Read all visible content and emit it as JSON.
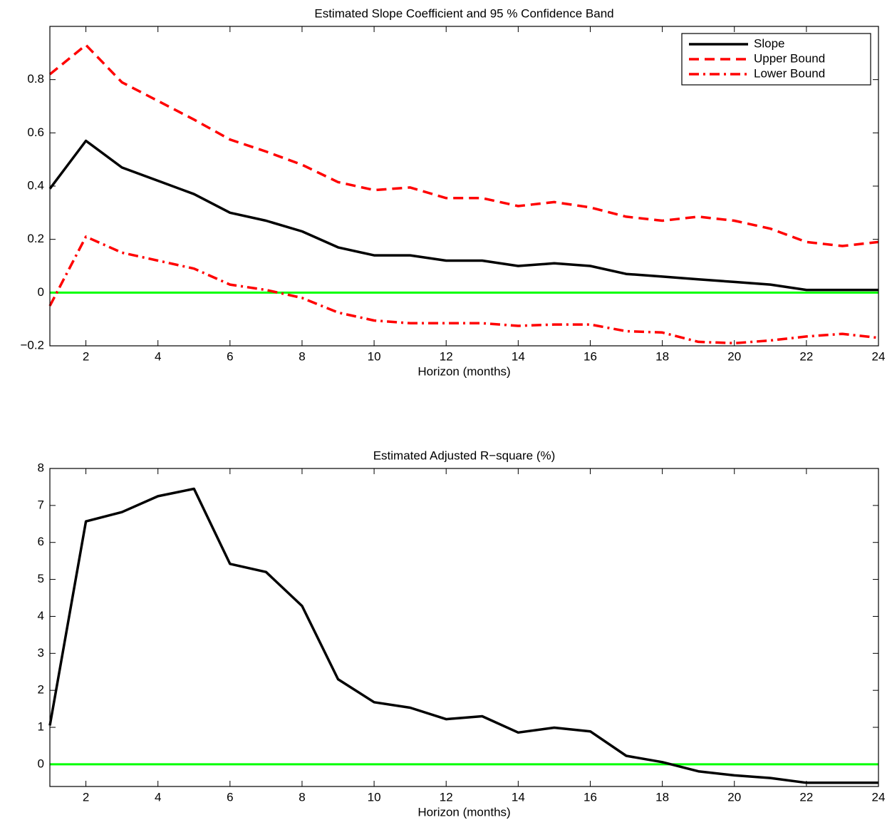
{
  "chart_data": [
    {
      "type": "line",
      "title": "Estimated Slope Coefficient and 95 % Confidence Band",
      "x_label": "Horizon (months)",
      "x": [
        1,
        2,
        3,
        4,
        5,
        6,
        7,
        8,
        9,
        10,
        11,
        12,
        13,
        14,
        15,
        16,
        17,
        18,
        19,
        20,
        21,
        22,
        23,
        24
      ],
      "xlim": [
        1,
        24
      ],
      "xticks": [
        2,
        4,
        6,
        8,
        10,
        12,
        14,
        16,
        18,
        20,
        22,
        24
      ],
      "ylim": [
        -0.2,
        1.0
      ],
      "yticks": [
        {
          "value": -0.2,
          "label": "−0.2"
        },
        0,
        0.2,
        0.4,
        0.6,
        0.8
      ],
      "legend": "upper right",
      "reference_line": {
        "value": 0,
        "color": "#00ff00"
      },
      "series": [
        {
          "name": "Slope",
          "color": "#000000",
          "dash": "solid",
          "values": [
            0.39,
            0.57,
            0.47,
            0.42,
            0.37,
            0.3,
            0.27,
            0.23,
            0.17,
            0.14,
            0.14,
            0.12,
            0.12,
            0.1,
            0.11,
            0.1,
            0.07,
            0.06,
            0.05,
            0.04,
            0.03,
            0.01,
            0.01,
            0.01
          ]
        },
        {
          "name": "Upper Bound",
          "color": "#ff0000",
          "dash": "dashed",
          "values": [
            0.82,
            0.93,
            0.79,
            0.72,
            0.65,
            0.575,
            0.53,
            0.48,
            0.415,
            0.385,
            0.395,
            0.355,
            0.355,
            0.325,
            0.34,
            0.32,
            0.285,
            0.27,
            0.285,
            0.27,
            0.24,
            0.19,
            0.175,
            0.19
          ]
        },
        {
          "name": "Lower Bound",
          "color": "#ff0000",
          "dash": "dashdot",
          "values": [
            -0.05,
            0.21,
            0.15,
            0.12,
            0.09,
            0.03,
            0.01,
            -0.02,
            -0.075,
            -0.105,
            -0.115,
            -0.115,
            -0.115,
            -0.125,
            -0.12,
            -0.12,
            -0.145,
            -0.15,
            -0.185,
            -0.19,
            -0.18,
            -0.165,
            -0.155,
            -0.17
          ]
        }
      ]
    },
    {
      "type": "line",
      "title": "Estimated Adjusted R−square (%)",
      "x_label": "Horizon (months)",
      "x": [
        1,
        2,
        3,
        4,
        5,
        6,
        7,
        8,
        9,
        10,
        11,
        12,
        13,
        14,
        15,
        16,
        17,
        18,
        19,
        20,
        21,
        22,
        23,
        24
      ],
      "xlim": [
        1,
        24
      ],
      "xticks": [
        2,
        4,
        6,
        8,
        10,
        12,
        14,
        16,
        18,
        20,
        22,
        24
      ],
      "ylim": [
        -0.6,
        8
      ],
      "yticks": [
        0,
        1,
        2,
        3,
        4,
        5,
        6,
        7,
        8
      ],
      "reference_line": {
        "value": 0,
        "color": "#00ff00"
      },
      "series": [
        {
          "color": "#000000",
          "dash": "solid",
          "values": [
            1.05,
            6.57,
            6.82,
            7.25,
            7.45,
            5.42,
            5.2,
            4.28,
            2.3,
            1.68,
            1.53,
            1.22,
            1.3,
            0.86,
            0.99,
            0.89,
            0.23,
            0.06,
            -0.19,
            -0.3,
            -0.37,
            -0.5,
            -0.5,
            -0.5
          ]
        }
      ]
    }
  ]
}
